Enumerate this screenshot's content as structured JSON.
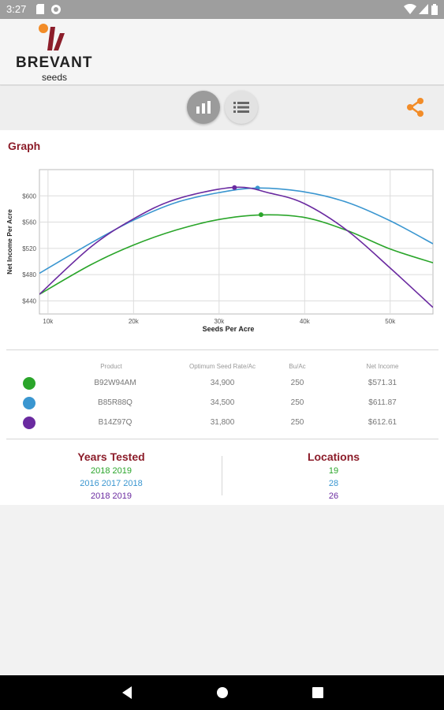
{
  "status_bar": {
    "time": "3:27",
    "icons": [
      "sd-card-icon",
      "sync-icon",
      "wifi-icon",
      "signal-icon",
      "battery-icon"
    ]
  },
  "brand": {
    "name": "BREVANT",
    "sub": "seeds",
    "colors": {
      "red": "#8c1d2a",
      "orange": "#f28c28"
    }
  },
  "toolbar": {
    "chart_view_icon": "bar-chart-icon",
    "list_view_icon": "list-icon",
    "share_icon": "share-icon",
    "chart_view_active": true
  },
  "graph": {
    "title": "Graph"
  },
  "chart_data": {
    "type": "line",
    "xlabel": "Seeds Per Acre",
    "ylabel": "Net Income Per Acre",
    "xlim": [
      9000,
      55000
    ],
    "ylim": [
      420,
      640
    ],
    "x_ticks": [
      10000,
      20000,
      30000,
      40000,
      50000
    ],
    "x_tick_labels": [
      "10k",
      "20k",
      "30k",
      "40k",
      "50k"
    ],
    "y_ticks": [
      440,
      480,
      520,
      560,
      600
    ],
    "y_tick_labels": [
      "$440",
      "$480",
      "$520",
      "$560",
      "$600"
    ],
    "grid": true,
    "series": [
      {
        "name": "B92W94AM",
        "color": "#2aa52a",
        "x": [
          9000,
          15000,
          20000,
          25000,
          30000,
          34900,
          40000,
          45000,
          50000,
          55000
        ],
        "y": [
          450,
          495,
          525,
          548,
          564,
          571,
          567,
          547,
          519,
          498
        ],
        "optimum": {
          "x": 34900,
          "y": 571.31
        }
      },
      {
        "name": "B85R88Q",
        "color": "#3a96d0",
        "x": [
          9000,
          15000,
          20000,
          25000,
          30000,
          34500,
          40000,
          45000,
          50000,
          55000
        ],
        "y": [
          482,
          528,
          563,
          590,
          605,
          612,
          606,
          590,
          562,
          527
        ],
        "optimum": {
          "x": 34500,
          "y": 611.87
        }
      },
      {
        "name": "B14Z97Q",
        "color": "#6a2aa0",
        "x": [
          9000,
          15000,
          20000,
          25000,
          31800,
          36000,
          40000,
          45000,
          50000,
          55000
        ],
        "y": [
          450,
          522,
          565,
          595,
          613,
          604,
          588,
          547,
          490,
          430
        ],
        "optimum": {
          "x": 31800,
          "y": 612.61
        }
      }
    ]
  },
  "table": {
    "headers": [
      "Product",
      "Optimum Seed Rate/Ac",
      "Bu/Ac",
      "Net Income"
    ],
    "rows": [
      {
        "color": "#2aa52a",
        "product": "B92W94AM",
        "seed_rate": "34,900",
        "bu_ac": "250",
        "net_income": "$571.31"
      },
      {
        "color": "#3a96d0",
        "product": "B85R88Q",
        "seed_rate": "34,500",
        "bu_ac": "250",
        "net_income": "$611.87"
      },
      {
        "color": "#6a2aa0",
        "product": "B14Z97Q",
        "seed_rate": "31,800",
        "bu_ac": "250",
        "net_income": "$612.61"
      }
    ]
  },
  "summary": {
    "years_title": "Years Tested",
    "locations_title": "Locations",
    "years": [
      "2018 2019",
      "2016 2017 2018",
      "2018 2019"
    ],
    "locations": [
      "19",
      "28",
      "26"
    ]
  },
  "nav": {
    "icons": [
      "back-icon",
      "home-icon",
      "recents-icon"
    ]
  }
}
